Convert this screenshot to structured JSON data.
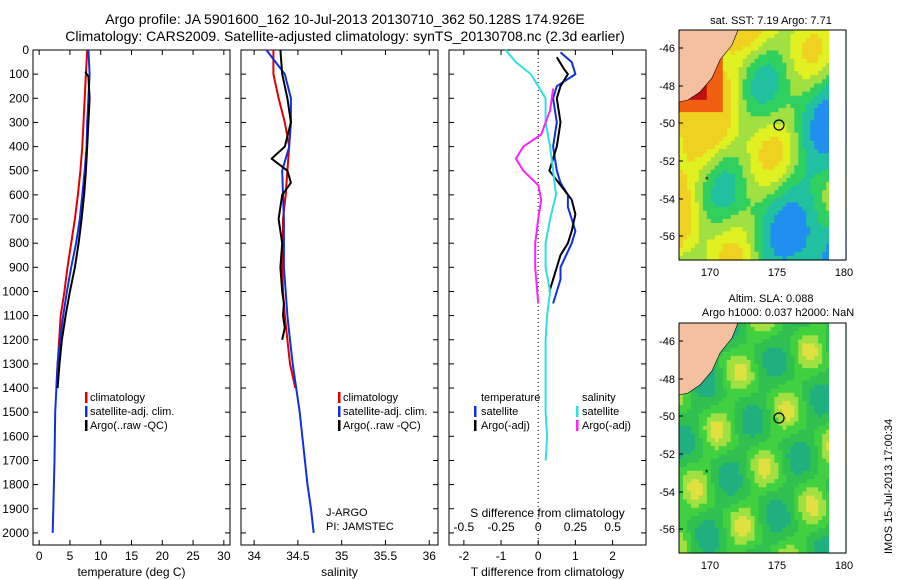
{
  "header": {
    "line1": "Argo profile: JA 5901600_162 10-Jul-2013 20130710_362 50.128S 174.926E",
    "line2": "Climatology: CARS2009. Satellite-adjusted climatology: synTS_20130708.nc (2.3d earlier)"
  },
  "colors": {
    "climatology": "#e00000",
    "satellite": "#1030e0",
    "argo": "#000000",
    "sat_t": "#30e0e0",
    "argo_t": "#ff20ff"
  },
  "chart_data": [
    {
      "type": "line",
      "xlabel": "temperature (deg C)",
      "ylabel": "",
      "xlim": [
        -1,
        31
      ],
      "ylim": [
        2050,
        0
      ],
      "xticks": [
        0,
        5,
        10,
        15,
        20,
        25,
        30
      ],
      "yticks": [
        0,
        100,
        200,
        300,
        400,
        500,
        600,
        700,
        800,
        900,
        1000,
        1100,
        1200,
        1300,
        1400,
        1500,
        1600,
        1700,
        1800,
        1900,
        2000
      ],
      "legend": [
        "climatology",
        "satellite-adj. clim.",
        "Argo(..raw -QC)"
      ],
      "series": [
        {
          "name": "climatology",
          "color_key": "climatology",
          "x": [
            7.8,
            7.6,
            7.4,
            7.2,
            7.0,
            6.7,
            6.3,
            5.8,
            5.2,
            4.6,
            4.1,
            3.5,
            3.0,
            2.8
          ],
          "y": [
            0,
            100,
            200,
            300,
            400,
            500,
            600,
            700,
            800,
            900,
            1000,
            1100,
            1300,
            1400
          ]
        },
        {
          "name": "satellite-adj. clim.",
          "color_key": "satellite",
          "x": [
            8.0,
            8.2,
            8.0,
            7.8,
            7.7,
            7.4,
            7.0,
            6.6,
            6.0,
            5.2,
            4.5,
            3.9,
            3.4,
            3.0,
            2.8,
            2.6,
            2.5,
            2.4,
            2.3,
            2.2
          ],
          "y": [
            0,
            100,
            200,
            300,
            400,
            500,
            600,
            700,
            800,
            900,
            1000,
            1100,
            1200,
            1300,
            1400,
            1500,
            1700,
            1800,
            1900,
            2000
          ]
        },
        {
          "name": "Argo(..raw -QC)",
          "color_key": "argo",
          "x": [
            7.5,
            8.0,
            8.2,
            8.0,
            7.8,
            7.6,
            7.3,
            6.9,
            6.4,
            5.8,
            5.0,
            4.3,
            3.7,
            3.3,
            3.0
          ],
          "y": [
            90,
            110,
            200,
            300,
            400,
            500,
            600,
            700,
            800,
            900,
            1000,
            1100,
            1200,
            1300,
            1400
          ]
        }
      ]
    },
    {
      "type": "line",
      "xlabel": "salinity",
      "ylabel": "",
      "xlim": [
        33.85,
        36.1
      ],
      "ylim": [
        2050,
        0
      ],
      "xticks": [
        34,
        34.5,
        35,
        35.5,
        36
      ],
      "xticklabels": [
        "34",
        "34.5",
        "35",
        "35.5",
        "36"
      ],
      "legend": [
        "climatology",
        "satellite-adj. clim.",
        "Argo(..raw -QC)"
      ],
      "annotations": [
        "J-ARGO",
        "PI: JAMSTEC"
      ],
      "series": [
        {
          "name": "climatology",
          "color_key": "climatology",
          "x": [
            34.22,
            34.22,
            34.28,
            34.35,
            34.4,
            34.38,
            34.36,
            34.33,
            34.33,
            34.32,
            34.33,
            34.35,
            34.38,
            34.41,
            34.47
          ],
          "y": [
            0,
            100,
            200,
            300,
            400,
            500,
            600,
            700,
            800,
            900,
            1000,
            1100,
            1200,
            1300,
            1400
          ]
        },
        {
          "name": "satellite-adj. clim.",
          "color_key": "satellite",
          "x": [
            34.14,
            34.35,
            34.42,
            34.42,
            34.4,
            34.32,
            34.33,
            34.34,
            34.34,
            34.34,
            34.36,
            34.38,
            34.41,
            34.44,
            34.48,
            34.52,
            34.55,
            34.58,
            34.61,
            34.65,
            34.68
          ],
          "y": [
            0,
            100,
            200,
            300,
            400,
            500,
            600,
            700,
            800,
            900,
            1000,
            1100,
            1200,
            1300,
            1400,
            1500,
            1600,
            1700,
            1800,
            1900,
            2000
          ]
        },
        {
          "name": "Argo(..raw -QC)",
          "color_key": "argo",
          "x": [
            34.3,
            34.32,
            34.38,
            34.42,
            34.35,
            34.2,
            34.38,
            34.42,
            34.32,
            34.28,
            34.32,
            34.3,
            34.32,
            34.34,
            34.33,
            34.35,
            34.32
          ],
          "y": [
            0,
            100,
            200,
            300,
            400,
            450,
            500,
            550,
            600,
            700,
            800,
            900,
            1000,
            1050,
            1100,
            1150,
            1200
          ]
        }
      ]
    },
    {
      "type": "line",
      "xlabel": "T difference from climatology",
      "x2label": "S difference from climatology",
      "xlim": [
        -2.4,
        2.9
      ],
      "ylim": [
        2050,
        0
      ],
      "xticks": [
        -2,
        -1,
        0,
        1,
        2
      ],
      "x2ticks": [
        -0.5,
        -0.25,
        0,
        0.25,
        0.5
      ],
      "x2ticklabels": [
        "-0.5",
        "-0.25",
        "0",
        "0.25",
        "0.5"
      ],
      "legend_groups": [
        {
          "title": "temperature",
          "items": [
            "satellite",
            "Argo(-adj)"
          ]
        },
        {
          "title": "salinity",
          "items": [
            "satellite",
            "Argo(-adj)"
          ]
        }
      ],
      "series": [
        {
          "name": "temperature satellite",
          "color_key": "satellite",
          "x": [
            0.6,
            0.9,
            1.0,
            0.5,
            0.4,
            0.5,
            0.4,
            0.5,
            0.6,
            0.8,
            0.8,
            0.9,
            1.0,
            0.9,
            0.6,
            0.6,
            0.5,
            0.4
          ],
          "y": [
            10,
            50,
            100,
            150,
            200,
            300,
            400,
            500,
            550,
            600,
            650,
            700,
            750,
            800,
            900,
            950,
            1000,
            1050
          ]
        },
        {
          "name": "temperature Argo(-adj)",
          "color_key": "argo",
          "x": [
            0.5,
            0.7,
            0.8,
            0.6,
            0.5,
            0.6,
            0.5,
            0.3,
            0.6,
            0.9,
            1.0,
            0.9,
            0.8,
            0.6,
            0.5,
            0.4,
            0.3
          ],
          "y": [
            30,
            80,
            100,
            150,
            200,
            300,
            400,
            500,
            560,
            620,
            680,
            750,
            800,
            850,
            900,
            950,
            1000
          ]
        },
        {
          "name": "salinity satellite",
          "color_key": "sat_t",
          "x": [
            -0.22,
            -0.15,
            -0.05,
            0.0,
            0.05,
            0.05,
            0.08,
            0.1,
            0.12,
            0.08,
            0.05,
            0.05,
            0.08,
            0.06,
            0.05,
            0.05,
            0.05,
            0.05,
            0.06,
            0.05
          ],
          "y": [
            0,
            50,
            100,
            150,
            200,
            300,
            400,
            500,
            600,
            700,
            800,
            900,
            1000,
            1100,
            1200,
            1300,
            1400,
            1500,
            1600,
            1700
          ]
        },
        {
          "name": "salinity Argo(-adj)",
          "color_key": "argo_t",
          "x": [
            0.1,
            0.08,
            0.02,
            -0.1,
            -0.15,
            -0.1,
            0.0,
            0.02,
            0.0,
            -0.02,
            -0.02,
            0.0
          ],
          "y": [
            160,
            250,
            350,
            400,
            450,
            500,
            560,
            620,
            700,
            800,
            900,
            1050
          ]
        }
      ]
    }
  ],
  "legend_labels": {
    "climatology": "climatology",
    "satellite_adj": "satellite-adj. clim.",
    "argo_raw": "Argo(..raw -QC)",
    "temperature": "temperature",
    "salinity": "salinity",
    "satellite": "satellite",
    "argo_adj": "Argo(-adj)"
  },
  "text": {
    "jargo": "J-ARGO",
    "pi": "PI: JAMSTEC"
  },
  "maps": {
    "sst_title": "sat. SST: 7.19 Argo: 7.71",
    "sla_title1": "Altim. SLA: 0.088",
    "sla_title2": "Argo h1000: 0.037 h2000: NaN",
    "lat_ticks": [
      "-46",
      "-48",
      "-50",
      "-52",
      "-54",
      "-56"
    ],
    "lon_ticks": [
      "170",
      "175",
      "180"
    ],
    "stamp": "IMOS 15-Jul-2013 17:00:34"
  }
}
